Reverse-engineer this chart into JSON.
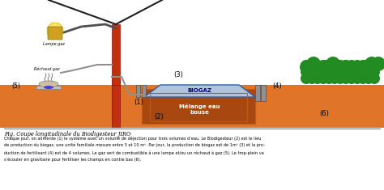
{
  "title": "Fig. Coupe longitudinale du Biodigesteur JIRO",
  "desc1": "Chaque jour, on alimente (1) le système avec un volume de déjection pour trois volumes d’eau. Le Biodigesteur (2) est le lieu",
  "desc2": "de production du biogaz, une unité familiale mesure entre 5 et 10 m³. Par jour, la production de biogaz est de 1m³ (3) et la pro-",
  "desc3": "duction de fertilisant (4) est de 4 volumes. Le gaz sert de combustible à une lampe et/ou un réchaud à gaz (5). Le trop-plein va",
  "desc4": "s’écouler en gravitaire pour fertiliser les champs en contre bas (6).",
  "bg": "#ffffff",
  "ground": "#e07428",
  "ground_dark": "#c05a10",
  "digester_fill": "#a84810",
  "biogaz_fill": "#b0c4e0",
  "biogaz_edge": "#3060a0",
  "lamp_yellow": "#ffe040",
  "tree_green": "#228B22",
  "pipe_gray": "#909090",
  "pole_red": "#c03010",
  "black": "#000000",
  "white": "#ffffff",
  "dark_blue": "#000080"
}
